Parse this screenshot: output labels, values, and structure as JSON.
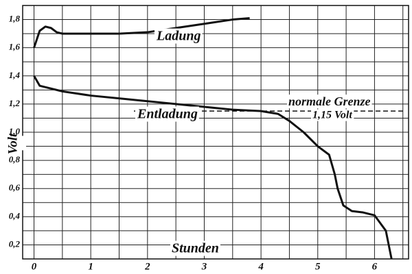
{
  "chart_data": {
    "type": "line",
    "xlabel": "Stunden",
    "ylabel": "Volt",
    "xlim": [
      -0.2,
      6.6
    ],
    "ylim": [
      0.1,
      1.9
    ],
    "xticks": [
      0,
      1,
      2,
      3,
      4,
      5,
      6
    ],
    "yticks": [
      {
        "value": 0.2,
        "label": "0,2"
      },
      {
        "value": 0.4,
        "label": "0,4"
      },
      {
        "value": 0.6,
        "label": "0,6"
      },
      {
        "value": 0.8,
        "label": "0,8"
      },
      {
        "value": 1.0,
        "label": "1,0"
      },
      {
        "value": 1.2,
        "label": "1,2"
      },
      {
        "value": 1.4,
        "label": "1,4"
      },
      {
        "value": 1.6,
        "label": "1,6"
      },
      {
        "value": 1.8,
        "label": "1,8"
      }
    ],
    "grid": true,
    "series": [
      {
        "name": "Ladung",
        "color": "#111111",
        "x": [
          0,
          0.1,
          0.2,
          0.3,
          0.4,
          0.5,
          1,
          1.5,
          2,
          2.5,
          3,
          3.5,
          3.8
        ],
        "values": [
          1.6,
          1.72,
          1.75,
          1.74,
          1.71,
          1.7,
          1.7,
          1.7,
          1.71,
          1.74,
          1.77,
          1.8,
          1.81
        ]
      },
      {
        "name": "Entladung",
        "color": "#111111",
        "x": [
          0,
          0.1,
          0.5,
          1,
          1.5,
          2,
          2.5,
          3,
          3.5,
          4,
          4.3,
          4.5,
          4.75,
          5,
          5.2,
          5.3,
          5.35,
          5.45,
          5.6,
          5.8,
          6,
          6.2,
          6.3
        ],
        "values": [
          1.4,
          1.33,
          1.29,
          1.26,
          1.24,
          1.22,
          1.2,
          1.18,
          1.16,
          1.15,
          1.13,
          1.08,
          1.0,
          0.9,
          0.84,
          0.7,
          0.6,
          0.48,
          0.44,
          0.43,
          0.41,
          0.3,
          0.1
        ]
      }
    ],
    "reference_line": {
      "value": 1.15,
      "label": "1,15 Volt",
      "note": "normale Grenze"
    }
  }
}
